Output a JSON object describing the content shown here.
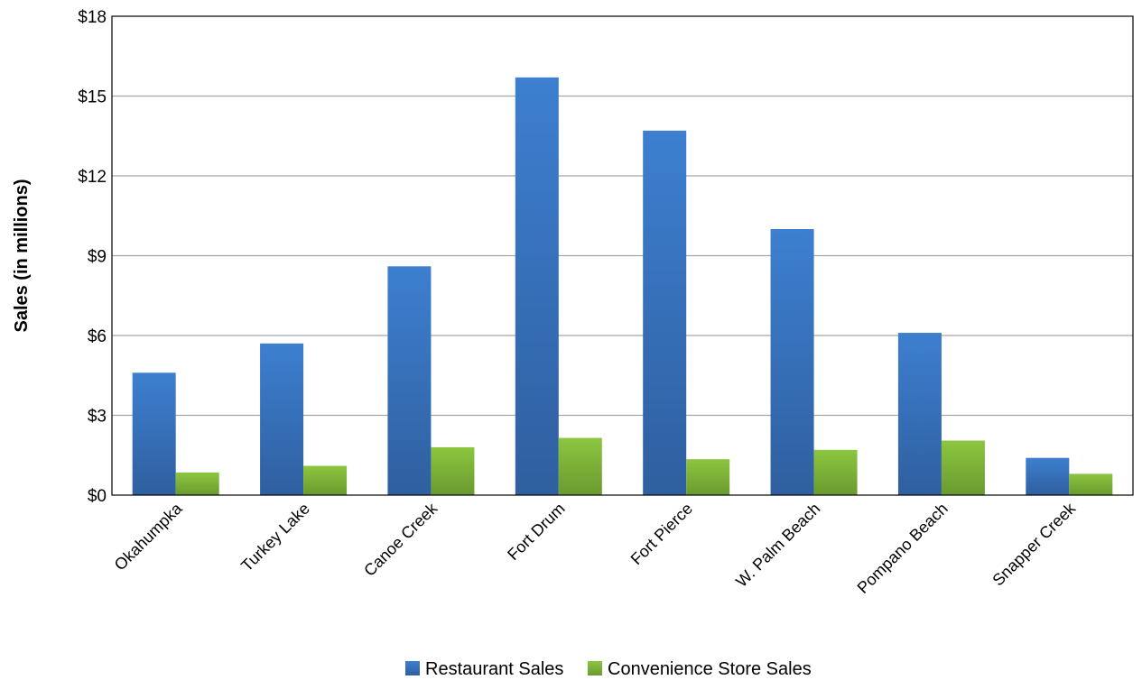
{
  "chart_data": {
    "type": "bar",
    "title": "",
    "xlabel": "",
    "ylabel": "Sales (in millions)",
    "ylim": [
      0,
      18
    ],
    "yticks": [
      0,
      3,
      6,
      9,
      12,
      15,
      18
    ],
    "ytick_labels": [
      "$0",
      "$3",
      "$6",
      "$9",
      "$12",
      "$15",
      "$18"
    ],
    "grid": true,
    "legend_position": "bottom",
    "categories": [
      "Okahumpka",
      "Turkey Lake",
      "Canoe Creek",
      "Fort Drum",
      "Fort Pierce",
      "W. Palm Beach",
      "Pompano Beach",
      "Snapper Creek"
    ],
    "series": [
      {
        "name": "Restaurant Sales",
        "color": "#3a78c5",
        "values": [
          4.6,
          5.7,
          8.6,
          15.7,
          13.7,
          10.0,
          6.1,
          1.4
        ]
      },
      {
        "name": "Convenience Store Sales",
        "color": "#7fb53a",
        "values": [
          0.85,
          1.1,
          1.8,
          2.15,
          1.35,
          1.7,
          2.05,
          0.8
        ]
      }
    ]
  }
}
